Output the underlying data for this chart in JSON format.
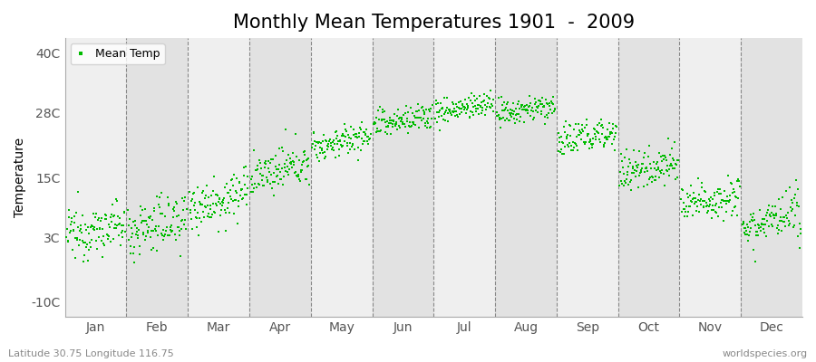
{
  "title": "Monthly Mean Temperatures 1901  -  2009",
  "ylabel": "Temperature",
  "yticks": [
    -10,
    3,
    15,
    28,
    40
  ],
  "ytick_labels": [
    "-10C",
    "3C",
    "15C",
    "28C",
    "40C"
  ],
  "ylim": [
    -13,
    43
  ],
  "months": [
    "Jan",
    "Feb",
    "Mar",
    "Apr",
    "May",
    "Jun",
    "Jul",
    "Aug",
    "Sep",
    "Oct",
    "Nov",
    "Dec"
  ],
  "dot_color": "#00bb00",
  "bg_color_light": "#efefef",
  "bg_color_dark": "#e2e2e2",
  "fig_color": "#ffffff",
  "annotation_left": "Latitude 30.75 Longitude 116.75",
  "annotation_right": "worldspecies.org",
  "legend_label": "Mean Temp",
  "title_fontsize": 15,
  "axis_fontsize": 10,
  "n_years": 109,
  "monthly_means_1901": [
    3.5,
    4.0,
    9.0,
    15.0,
    21.0,
    25.5,
    28.0,
    27.5,
    22.0,
    15.5,
    9.0,
    5.0
  ],
  "monthly_means_2009": [
    5.5,
    7.0,
    12.0,
    18.0,
    23.5,
    27.5,
    30.0,
    29.5,
    24.5,
    18.5,
    12.0,
    7.5
  ],
  "monthly_stds": [
    2.5,
    2.8,
    2.5,
    2.0,
    1.5,
    1.5,
    1.3,
    1.3,
    1.8,
    2.0,
    2.0,
    2.2
  ]
}
